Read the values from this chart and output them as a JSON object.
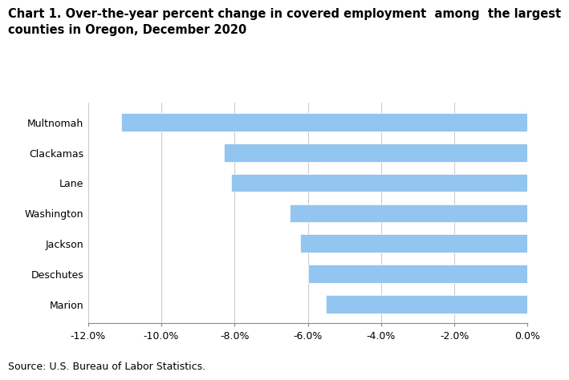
{
  "title_line1": "Chart 1. Over-the-year percent change in covered employment  among  the largest",
  "title_line2": "counties in Oregon, December 2020",
  "categories": [
    "Multnomah",
    "Clackamas",
    "Lane",
    "Washington",
    "Jackson",
    "Deschutes",
    "Marion"
  ],
  "values": [
    -11.1,
    -8.3,
    -8.1,
    -6.5,
    -6.2,
    -6.0,
    -5.5
  ],
  "bar_color": "#92C5F0",
  "xlim": [
    -12.0,
    0.0
  ],
  "xticks": [
    -12.0,
    -10.0,
    -8.0,
    -6.0,
    -4.0,
    -2.0,
    0.0
  ],
  "source_text": "Source: U.S. Bureau of Labor Statistics.",
  "background_color": "#ffffff",
  "bar_edgecolor": "#ffffff",
  "grid_color": "#cccccc",
  "title_fontsize": 10.5,
  "tick_fontsize": 9,
  "source_fontsize": 9
}
